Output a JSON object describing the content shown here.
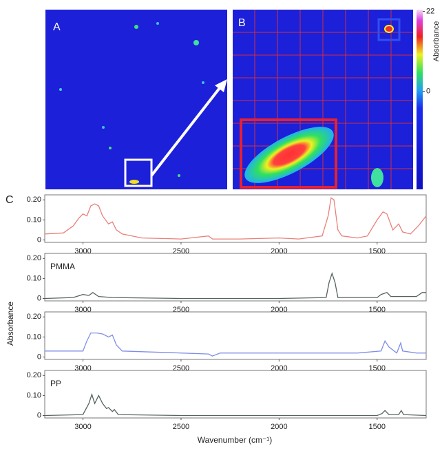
{
  "figure": {
    "labels": {
      "a": "A",
      "b": "B",
      "c": "C"
    },
    "colorbar": {
      "label": "Absorbance",
      "ticks": [
        0,
        22
      ],
      "lim": [
        -27,
        22.5
      ]
    },
    "x_label": "Wavenumber (cm⁻¹)",
    "y_label": "Absorbance"
  },
  "chart_data": [
    {
      "type": "line",
      "color": "#e8807a",
      "xlim": [
        3195,
        1250
      ],
      "ylim": [
        -0.012,
        0.225
      ],
      "xticks": [
        3000,
        2500,
        2000,
        1500
      ],
      "yticks": [
        0,
        {
          "value": 0.1,
          "label": "0.10"
        },
        {
          "value": 0.2,
          "label": "0.20"
        }
      ],
      "x": [
        3195,
        3100,
        3050,
        3020,
        3000,
        2980,
        2960,
        2940,
        2920,
        2900,
        2870,
        2850,
        2830,
        2800,
        2700,
        2500,
        2360,
        2340,
        2200,
        2000,
        1900,
        1780,
        1750,
        1735,
        1720,
        1700,
        1680,
        1600,
        1550,
        1500,
        1470,
        1450,
        1420,
        1390,
        1370,
        1330,
        1290,
        1250
      ],
      "values": [
        0.03,
        0.035,
        0.07,
        0.11,
        0.13,
        0.12,
        0.17,
        0.18,
        0.17,
        0.12,
        0.08,
        0.09,
        0.05,
        0.03,
        0.01,
        0.005,
        0.02,
        0.005,
        0.005,
        0.01,
        0.005,
        0.02,
        0.12,
        0.21,
        0.2,
        0.05,
        0.02,
        0.01,
        0.02,
        0.1,
        0.14,
        0.13,
        0.05,
        0.08,
        0.04,
        0.03,
        0.07,
        0.12
      ]
    },
    {
      "type": "line",
      "color": "#556360",
      "annotation": "PMMA",
      "xlim": [
        3195,
        1250
      ],
      "ylim": [
        -0.012,
        0.225
      ],
      "xticks": [
        3000,
        2500,
        2000,
        1500
      ],
      "yticks": [
        0,
        {
          "value": 0.1,
          "label": "0.10"
        },
        {
          "value": 0.2,
          "label": "0.20"
        }
      ],
      "x": [
        3195,
        3050,
        3000,
        2970,
        2950,
        2920,
        2850,
        2500,
        2000,
        1760,
        1745,
        1730,
        1715,
        1700,
        1500,
        1480,
        1450,
        1430,
        1390,
        1300,
        1270,
        1250
      ],
      "values": [
        0,
        0.005,
        0.02,
        0.015,
        0.03,
        0.01,
        0.005,
        0,
        0,
        0.005,
        0.08,
        0.125,
        0.08,
        0.005,
        0.005,
        0.02,
        0.03,
        0.01,
        0.01,
        0.01,
        0.03,
        0.03
      ]
    },
    {
      "type": "line",
      "color": "#7f8ee8",
      "xlim": [
        3195,
        1250
      ],
      "ylim": [
        -0.012,
        0.225
      ],
      "xticks": [
        3000,
        2500,
        2000,
        1500
      ],
      "yticks": [
        0,
        {
          "value": 0.1,
          "label": "0.10"
        },
        {
          "value": 0.2,
          "label": "0.20"
        }
      ],
      "x": [
        3195,
        3000,
        2980,
        2960,
        2930,
        2900,
        2870,
        2850,
        2830,
        2800,
        2500,
        2360,
        2340,
        2300,
        2000,
        1600,
        1480,
        1460,
        1440,
        1400,
        1380,
        1370,
        1300,
        1250
      ],
      "values": [
        0.03,
        0.03,
        0.08,
        0.12,
        0.12,
        0.115,
        0.1,
        0.11,
        0.06,
        0.03,
        0.02,
        0.015,
        0.005,
        0.02,
        0.02,
        0.02,
        0.03,
        0.08,
        0.05,
        0.02,
        0.07,
        0.03,
        0.02,
        0.02
      ]
    },
    {
      "type": "line",
      "color": "#556360",
      "annotation": "PP",
      "xlim": [
        3195,
        1250
      ],
      "ylim": [
        -0.012,
        0.225
      ],
      "xticks": [
        3000,
        2500,
        2000,
        1500
      ],
      "yticks": [
        0,
        {
          "value": 0.1,
          "label": "0.10"
        },
        {
          "value": 0.2,
          "label": "0.20"
        }
      ],
      "x": [
        3195,
        3000,
        2970,
        2955,
        2940,
        2920,
        2900,
        2880,
        2870,
        2850,
        2840,
        2820,
        2500,
        2000,
        1500,
        1475,
        1460,
        1440,
        1390,
        1377,
        1365,
        1250
      ],
      "values": [
        0,
        0.005,
        0.06,
        0.105,
        0.06,
        0.1,
        0.06,
        0.035,
        0.04,
        0.02,
        0.03,
        0.005,
        0,
        0,
        0,
        0.01,
        0.025,
        0.005,
        0.005,
        0.025,
        0.005,
        0
      ]
    }
  ]
}
